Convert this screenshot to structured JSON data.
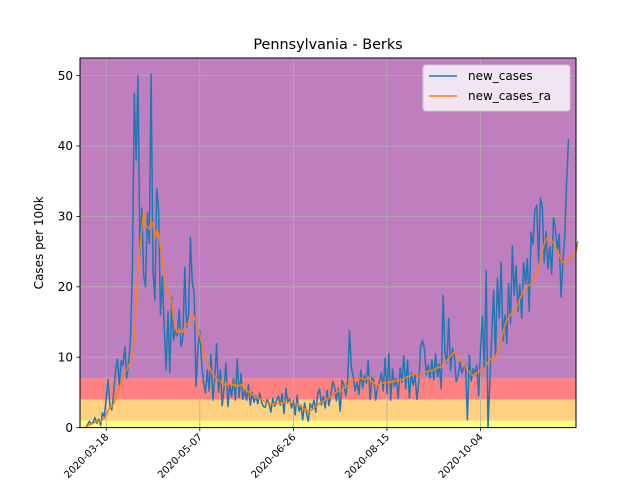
{
  "chart_data": {
    "type": "line",
    "title": "Pennsylvania - Berks",
    "xlabel": "",
    "ylabel": "Cases per 100k",
    "x_start": "2020-03-07",
    "xlim": [
      "2020-03-04",
      "2020-11-24"
    ],
    "ylim": [
      0,
      52.5
    ],
    "x_ticks": [
      "2020-03-18",
      "2020-05-07",
      "2020-06-26",
      "2020-08-15",
      "2020-10-04"
    ],
    "y_ticks": [
      0,
      10,
      20,
      30,
      40,
      50
    ],
    "grid": true,
    "legend_position": "top-right",
    "bands": [
      {
        "from": 0,
        "to": 1,
        "color": "#ffff80"
      },
      {
        "from": 1,
        "to": 4,
        "color": "#ffd080"
      },
      {
        "from": 4,
        "to": 7,
        "color": "#ff8080"
      },
      {
        "from": 7,
        "to": 52.5,
        "color": "#bf7fbf"
      }
    ],
    "series": [
      {
        "name": "new_cases",
        "color": "#1f77b4",
        "values": [
          0,
          0.4,
          0.9,
          0.5,
          0.8,
          1.4,
          0.6,
          1.2,
          0.3,
          2.1,
          1.5,
          4.2,
          6.8,
          3.1,
          2.5,
          4.9,
          8.1,
          9.8,
          6.1,
          9.5,
          8.8,
          11.5,
          7.0,
          9.4,
          12.6,
          22.5,
          47.5,
          38.0,
          50.0,
          24.6,
          31.2,
          21.8,
          20.0,
          30.5,
          26.2,
          50.2,
          22.3,
          18.1,
          33.9,
          31.0,
          16.0,
          21.5,
          14.2,
          8.2,
          16.5,
          7.8,
          18.5,
          12.4,
          13.9,
          13.0,
          16.8,
          11.5,
          12.8,
          22.8,
          14.3,
          16.1,
          27.0,
          20.6,
          19.0,
          5.8,
          11.2,
          13.8,
          9.0,
          6.5,
          4.9,
          8.2,
          5.2,
          10.4,
          3.9,
          7.0,
          11.9,
          5.0,
          8.2,
          3.1,
          5.8,
          9.1,
          3.0,
          6.2,
          4.4,
          7.0,
          3.9,
          9.8,
          4.3,
          7.7,
          4.0,
          5.3,
          3.9,
          6.1,
          3.2,
          5.0,
          3.6,
          4.5,
          3.4,
          4.9,
          3.6,
          3.0,
          2.9,
          4.0,
          3.5,
          2.2,
          4.2,
          3.0,
          3.8,
          4.5,
          3.2,
          4.8,
          2.0,
          5.6,
          3.5,
          4.1,
          2.8,
          3.9,
          1.8,
          4.6,
          2.3,
          3.2,
          1.1,
          3.5,
          2.1,
          0.9,
          3.4,
          2.8,
          3.9,
          2.2,
          4.8,
          5.5,
          3.2,
          4.4,
          2.8,
          5.3,
          3.1,
          4.6,
          6.5,
          5.8,
          3.8,
          5.6,
          2.3,
          6.7,
          6.1,
          4.5,
          6.8,
          13.8,
          8.5,
          7.2,
          5.2,
          6.5,
          4.7,
          8.2,
          5.6,
          7.4,
          6.3,
          9.5,
          4.0,
          7.1,
          6.8,
          3.9,
          5.6,
          6.6,
          7.8,
          5.2,
          9.9,
          4.8,
          10.5,
          3.9,
          8.3,
          5.8,
          7.0,
          4.1,
          8.5,
          6.4,
          10.2,
          5.5,
          9.6,
          4.2,
          7.8,
          6.0,
          7.5,
          4.0,
          6.5,
          11.4,
          12.4,
          11.2,
          7.5,
          8.9,
          7.0,
          9.6,
          6.8,
          10.5,
          7.2,
          9.0,
          5.5,
          18.8,
          10.5,
          9.2,
          15.5,
          8.1,
          11.2,
          10.2,
          6.5,
          7.4,
          9.3,
          7.8,
          8.5,
          8.9,
          1.1,
          10.3,
          6.6,
          8.4,
          7.5,
          8.9,
          4.5,
          11.2,
          15.8,
          8.5,
          22.3,
          0,
          6.8,
          13.5,
          19.5,
          10.0,
          21.2,
          15.5,
          23.5,
          12.3,
          16.0,
          11.9,
          20.5,
          14.8,
          25.8,
          18.8,
          23.0,
          16.5,
          20.3,
          15.5,
          23.5,
          20.4,
          24.0,
          16.5,
          27.8,
          26.0,
          30.8,
          31.6,
          23.3,
          32.6,
          31.4,
          23.4,
          27.9,
          22.6,
          25.7,
          21.8,
          29.8,
          28.3,
          25.0,
          27.5,
          18.5,
          23.5,
          27.3,
          35.0,
          41.0
        ]
      },
      {
        "name": "new_cases_ra",
        "color": "#ff7f0e",
        "values": [
          0.0,
          0.2,
          0.4,
          0.5,
          0.6,
          0.8,
          0.8,
          0.9,
          0.8,
          1.1,
          1.3,
          1.8,
          2.4,
          2.8,
          3.0,
          3.4,
          4.1,
          5.0,
          5.6,
          6.3,
          7.1,
          7.8,
          8.2,
          8.9,
          9.2,
          10.1,
          12.5,
          17.8,
          23.0,
          25.5,
          28.3,
          30.6,
          29.0,
          28.5,
          28.2,
          29.3,
          28.9,
          26.8,
          28.0,
          27.5,
          25.7,
          23.6,
          21.8,
          19.9,
          19.5,
          18.9,
          17.8,
          15.3,
          14.2,
          13.5,
          14.0,
          13.5,
          13.6,
          14.4,
          14.6,
          14.9,
          16.2,
          16.0,
          15.8,
          14.8,
          14.2,
          13.1,
          12.0,
          10.9,
          9.8,
          9.4,
          8.8,
          8.0,
          7.5,
          7.3,
          6.9,
          6.7,
          6.6,
          6.3,
          6.1,
          6.4,
          6.0,
          6.3,
          5.9,
          6.2,
          5.8,
          6.1,
          5.9,
          6.2,
          5.8,
          5.5,
          5.3,
          5.1,
          5.0,
          4.7,
          4.5,
          4.3,
          4.2,
          4.1,
          3.9,
          3.8,
          3.6,
          3.5,
          3.5,
          3.4,
          3.4,
          3.3,
          3.4,
          3.5,
          3.5,
          3.6,
          3.5,
          3.7,
          3.6,
          3.7,
          3.5,
          3.6,
          3.4,
          3.3,
          3.2,
          3.0,
          2.8,
          2.7,
          2.5,
          2.3,
          2.4,
          2.5,
          2.8,
          3.0,
          3.2,
          3.5,
          3.6,
          3.8,
          3.9,
          4.1,
          4.2,
          4.4,
          4.6,
          4.8,
          5.0,
          5.2,
          5.1,
          5.4,
          5.6,
          5.8,
          5.9,
          6.4,
          6.6,
          6.8,
          6.9,
          7.0,
          7.1,
          7.0,
          6.9,
          6.8,
          6.9,
          7.2,
          6.7,
          6.5,
          6.4,
          6.1,
          6.0,
          6.2,
          6.3,
          6.3,
          6.4,
          6.4,
          6.5,
          6.4,
          6.6,
          6.5,
          6.7,
          6.6,
          6.8,
          6.8,
          7.0,
          7.1,
          7.3,
          7.3,
          7.4,
          7.5,
          7.7,
          7.4,
          7.2,
          7.4,
          7.7,
          7.9,
          7.9,
          8.0,
          8.1,
          8.0,
          8.2,
          8.4,
          8.5,
          8.6,
          8.5,
          9.1,
          9.3,
          9.4,
          9.9,
          10.1,
          10.5,
          10.8,
          10.4,
          10.0,
          9.8,
          9.5,
          9.0,
          8.7,
          8.1,
          8.0,
          7.5,
          7.4,
          7.6,
          7.8,
          7.9,
          8.2,
          7.8,
          8.3,
          8.9,
          9.2,
          9.8,
          9.5,
          9.6,
          10.0,
          10.8,
          11.3,
          12.5,
          13.4,
          14.6,
          15.2,
          15.6,
          16.0,
          16.4,
          16.4,
          16.8,
          17.5,
          18.3,
          18.8,
          19.5,
          19.8,
          19.9,
          20.3,
          20.5,
          20.7,
          21.4,
          22.0,
          22.9,
          23.9,
          25.0,
          26.0,
          26.7,
          27.0,
          26.8,
          26.5,
          26.2,
          25.6,
          25.1,
          24.5,
          24.0,
          23.5,
          23.5,
          23.8,
          24.0,
          24.0,
          24.3,
          24.7,
          25.0,
          26.5
        ]
      }
    ]
  }
}
